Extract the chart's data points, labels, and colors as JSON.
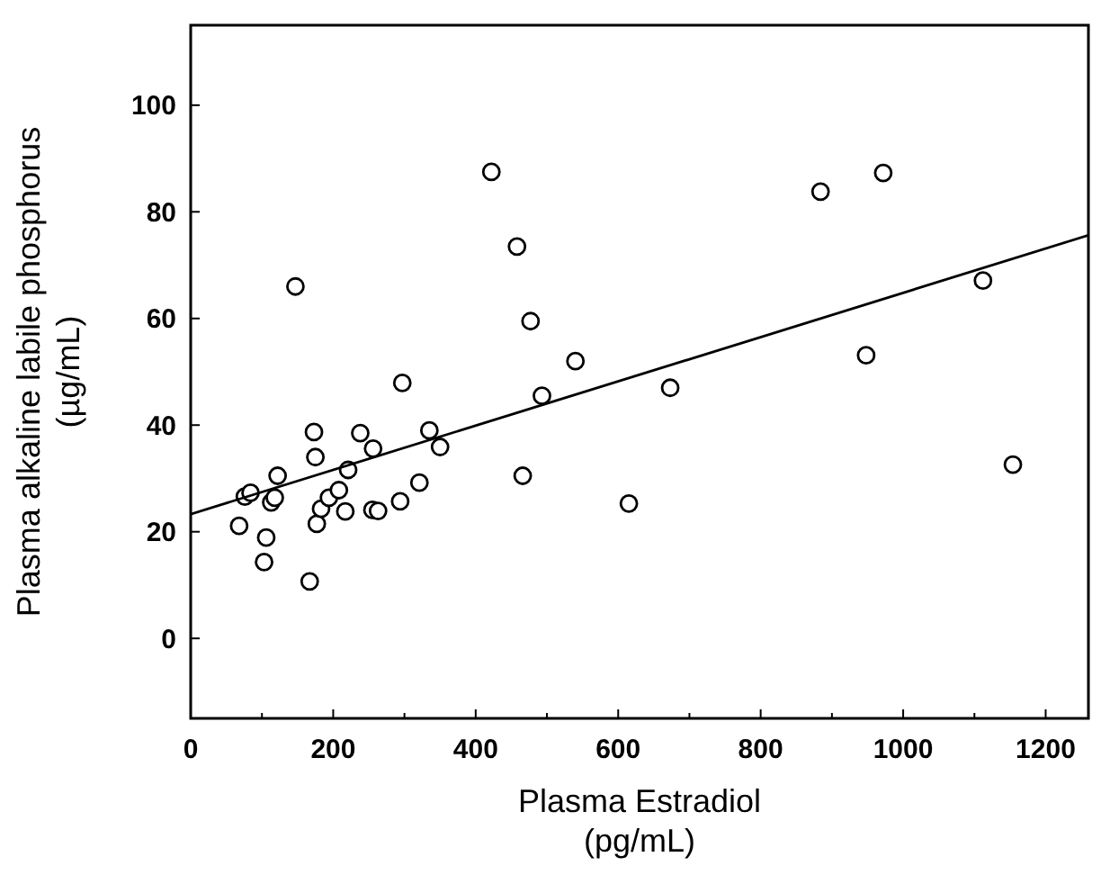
{
  "chart_data": {
    "type": "scatter",
    "xlabel": "Plasma Estradiol\n(pg/mL)",
    "ylabel": "Plasma alkaline labile phosphorus\n(µg/mL)",
    "xlim": [
      0,
      1260
    ],
    "ylim": [
      -15,
      115
    ],
    "xticks": [
      0,
      {
        "value": 100,
        "label": null
      },
      200,
      {
        "value": 300,
        "label": null
      },
      400,
      {
        "value": 500,
        "label": null
      },
      600,
      {
        "value": 700,
        "label": null
      },
      800,
      {
        "value": 900,
        "label": null
      },
      1000,
      {
        "value": 1100,
        "label": null
      },
      1200
    ],
    "yticks": [
      0,
      20,
      40,
      60,
      80,
      100
    ],
    "grid": false,
    "marker": "circle",
    "series": [
      {
        "color": "#000000",
        "x": [
          68,
          76,
          84,
          106,
          103,
          113,
          118,
          122,
          147,
          167,
          173,
          175,
          177,
          183,
          194,
          208,
          217,
          221,
          238,
          256,
          255,
          263,
          294,
          297,
          321,
          335,
          350,
          422,
          458,
          466,
          477,
          493,
          540,
          615,
          673,
          884,
          972,
          948,
          1112,
          1154
        ],
        "values": [
          21.1,
          26.6,
          27.3,
          18.9,
          14.3,
          25.5,
          26.4,
          30.5,
          66,
          10.7,
          38.7,
          34,
          21.5,
          24.3,
          26.4,
          27.8,
          23.8,
          31.6,
          38.5,
          35.6,
          24.1,
          23.9,
          25.7,
          47.9,
          29.2,
          39,
          35.9,
          87.5,
          73.5,
          30.5,
          59.5,
          45.5,
          52,
          25.3,
          47,
          83.8,
          87.3,
          53.1,
          67.1,
          32.6
        ]
      },
      {
        "type": "line",
        "color": "#000000",
        "marker": "none",
        "x": [
          0,
          1260
        ],
        "values": [
          23.3,
          75.6
        ]
      }
    ]
  }
}
